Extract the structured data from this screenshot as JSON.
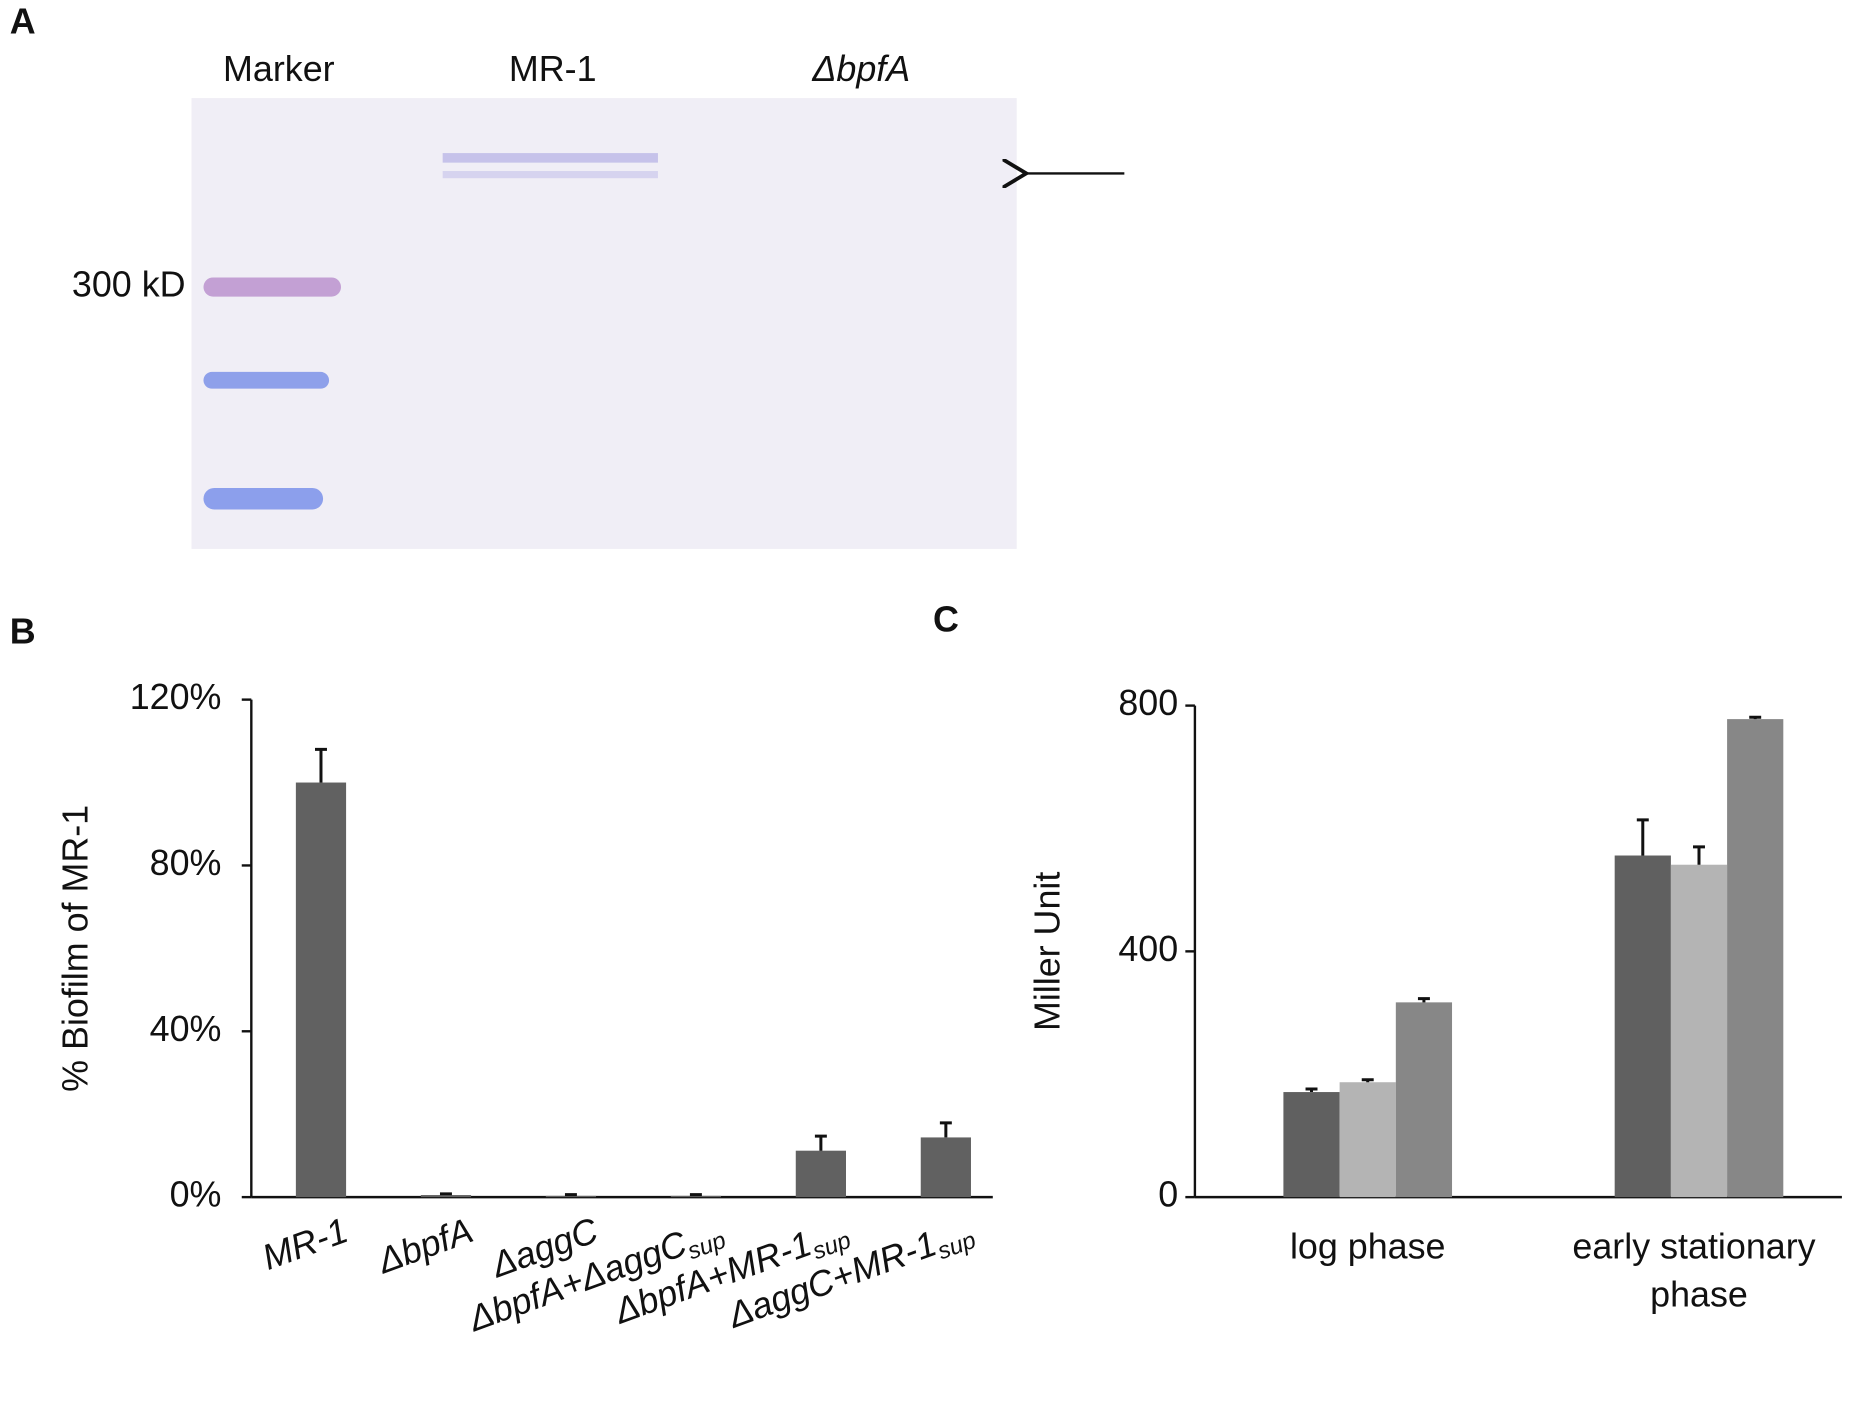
{
  "gel": {
    "panel": "A",
    "lanes": [
      "Marker",
      "MR-1",
      "ΔbpfA"
    ],
    "marker_label": "300 kD"
  },
  "chart_data": [
    {
      "type": "bar",
      "panel": "B",
      "ylabel": "% Biofilm of MR-1",
      "categories": [
        "MR-1",
        "ΔbpfA",
        "ΔaggC",
        "ΔbpfA+ΔaggC",
        "ΔbpfA+MR-1",
        "ΔaggC+MR-1"
      ],
      "category_subscripts": [
        null,
        null,
        null,
        "sup",
        "sup",
        "sup"
      ],
      "values": [
        100,
        0.5,
        0.3,
        0.3,
        11.2,
        14.4
      ],
      "errors": [
        8,
        0.3,
        0.3,
        0.3,
        3.5,
        3.5
      ],
      "color": "#616161",
      "ylim": [
        0,
        120
      ],
      "yticks": [
        {
          "value": 0,
          "label": "0%"
        },
        {
          "value": 40,
          "label": "40%"
        },
        {
          "value": 80,
          "label": "80%"
        },
        {
          "value": 120,
          "label": "120%"
        }
      ]
    },
    {
      "type": "bar",
      "panel": "C",
      "ylabel": "Miller Unit",
      "categories": [
        "log phase",
        "early stationary phase"
      ],
      "series": [
        {
          "color": "#606060",
          "values": [
            171,
            556
          ],
          "errors": [
            5,
            58
          ]
        },
        {
          "color": "#b4b4b4",
          "values": [
            187,
            541
          ],
          "errors": [
            4,
            29
          ]
        },
        {
          "color": "#878787",
          "values": [
            317,
            778
          ],
          "errors": [
            6,
            3
          ]
        }
      ],
      "ylim": [
        0,
        800
      ],
      "yticks": [
        0,
        400,
        800
      ]
    }
  ]
}
